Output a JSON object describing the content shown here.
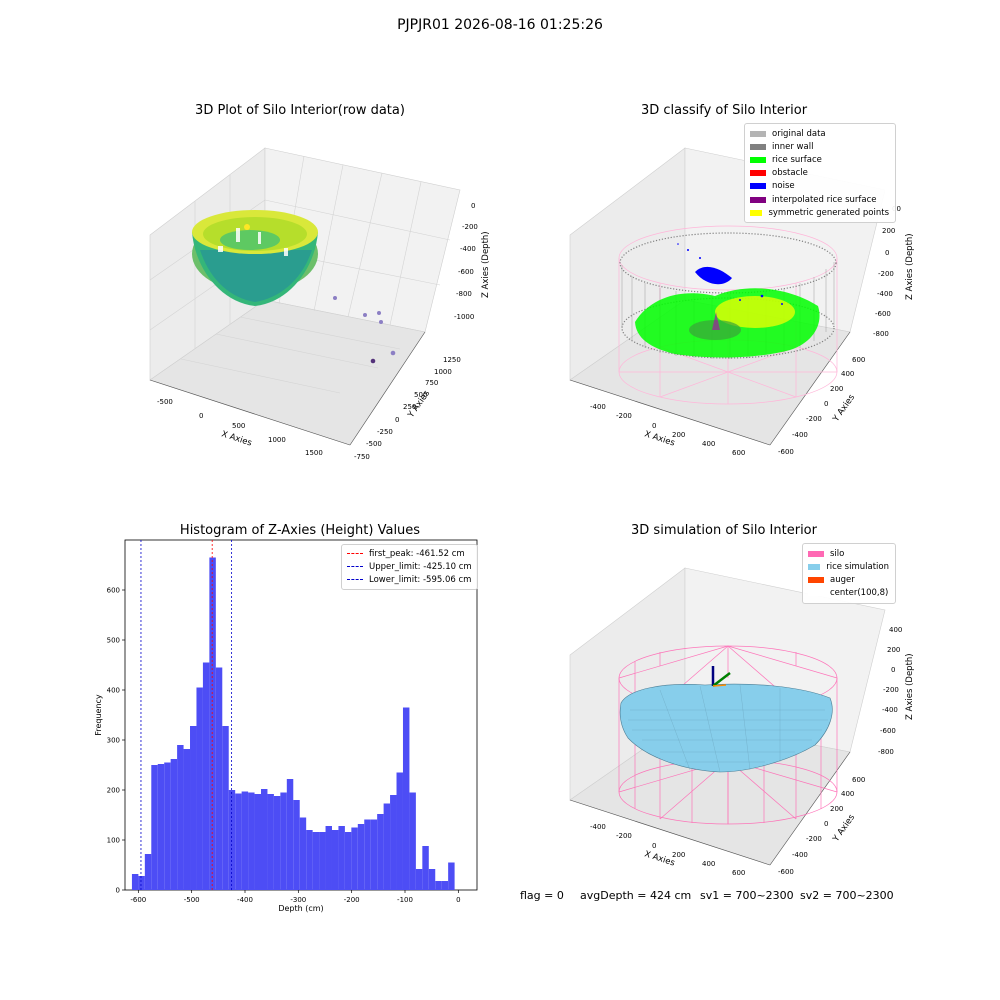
{
  "suptitle": "PJPJR01 2026-08-16 01:25:26",
  "panels": {
    "raw": {
      "title": "3D Plot of Silo Interior(row data)",
      "xlabel": "X Axies",
      "ylabel": "Y Axies",
      "zlabel": "Z Axies (Depth)",
      "xticks": [
        "-500",
        "0",
        "500",
        "1000",
        "1500"
      ],
      "yticks": [
        "-750",
        "-500",
        "-250",
        "0",
        "250",
        "500",
        "750",
        "1000",
        "1250"
      ],
      "zticks": [
        "0",
        "-200",
        "-400",
        "-600",
        "-800",
        "-1000"
      ]
    },
    "classify": {
      "title": "3D classify of Silo Interior",
      "xlabel": "X Axies",
      "ylabel": "Y Axies",
      "zlabel": "Z Axies (Depth)",
      "xticks": [
        "-400",
        "-200",
        "0",
        "200",
        "400",
        "600"
      ],
      "yticks": [
        "-600",
        "-400",
        "-200",
        "0",
        "200",
        "400",
        "600"
      ],
      "zticks": [
        "200",
        "0",
        "-200",
        "-400",
        "-600",
        "-800"
      ],
      "ztop_partial": "00",
      "legend": [
        {
          "label": "original data",
          "color": "#b4b4b4"
        },
        {
          "label": "inner wall",
          "color": "#808080"
        },
        {
          "label": "rice surface",
          "color": "#00ff00"
        },
        {
          "label": "obstacle",
          "color": "#ff0000"
        },
        {
          "label": "noise",
          "color": "#0000ff"
        },
        {
          "label": "interpolated rice surface",
          "color": "#800080"
        },
        {
          "label": "symmetric generated points",
          "color": "#ffff00"
        }
      ]
    },
    "simulation": {
      "title": "3D simulation of Silo Interior",
      "xlabel": "X Axies",
      "ylabel": "Y Axies",
      "zlabel": "Z Axies (Depth)",
      "xticks": [
        "-400",
        "-200",
        "0",
        "200",
        "400",
        "600"
      ],
      "yticks": [
        "-600",
        "-400",
        "-200",
        "0",
        "200",
        "400",
        "600"
      ],
      "zticks": [
        "400",
        "200",
        "0",
        "-200",
        "-400",
        "-600",
        "-800"
      ],
      "legend": [
        {
          "label": "silo",
          "color": "#ff69b4"
        },
        {
          "label": "rice simulation",
          "color": "#87ceeb"
        },
        {
          "label": "auger",
          "color": "#ff4500"
        },
        {
          "label": "center(100,8)",
          "color": "#ffffff"
        }
      ]
    }
  },
  "footer": {
    "flag": "flag = 0",
    "avg": "avgDepth = 424 cm",
    "sv1": "sv1 = 700~2300",
    "sv2": "sv2 = 700~2300"
  },
  "chart_data": [
    {
      "type": "bar",
      "title": "Histogram of Z-Axies (Height) Values",
      "xlabel": "Depth (cm)",
      "ylabel": "Frequency",
      "xlim": [
        -625,
        35
      ],
      "ylim": [
        0,
        700
      ],
      "xticks": [
        -600,
        -500,
        -400,
        -300,
        -200,
        -100,
        0
      ],
      "yticks": [
        0,
        100,
        200,
        300,
        400,
        500,
        600
      ],
      "bin_start": -612,
      "bin_width": 12.1,
      "color": "#4d4df5",
      "values": [
        32,
        28,
        72,
        250,
        252,
        255,
        262,
        290,
        282,
        328,
        405,
        455,
        665,
        445,
        328,
        200,
        193,
        197,
        195,
        192,
        202,
        192,
        188,
        195,
        222,
        180,
        145,
        120,
        116,
        116,
        128,
        120,
        128,
        116,
        125,
        132,
        141,
        141,
        152,
        173,
        190,
        235,
        365,
        195,
        42,
        88,
        42,
        18,
        18,
        55
      ],
      "lines": [
        {
          "label": "first_peak: -461.52 cm",
          "x": -461.52,
          "color": "#ff0000"
        },
        {
          "label": "Upper_limit: -425.10 cm",
          "x": -425.1,
          "color": "#0000cc"
        },
        {
          "label": "Lower_limit: -595.06 cm",
          "x": -595.06,
          "color": "#0000cc"
        }
      ]
    }
  ]
}
